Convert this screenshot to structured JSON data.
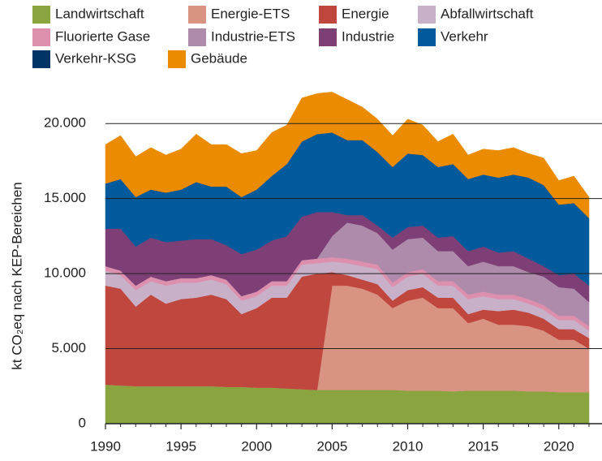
{
  "chart_data": {
    "type": "stacked_area",
    "y_label": "kt CO₂eq nach KEP-Bereichen",
    "x": [
      1990,
      1991,
      1992,
      1993,
      1994,
      1995,
      1996,
      1997,
      1998,
      1999,
      2000,
      2001,
      2002,
      2003,
      2004,
      2005,
      2006,
      2007,
      2008,
      2009,
      2010,
      2011,
      2012,
      2013,
      2014,
      2015,
      2016,
      2017,
      2018,
      2019,
      2020,
      2021,
      2022
    ],
    "xlim": [
      1990,
      2022
    ],
    "xticks": [
      1990,
      1995,
      2000,
      2005,
      2010,
      2015,
      2020
    ],
    "ylim": [
      0,
      22500
    ],
    "yticks": [
      0,
      {
        "value": 5000,
        "label": "5.000"
      },
      {
        "value": 10000,
        "label": "10.000"
      },
      {
        "value": 15000,
        "label": "15.000"
      },
      {
        "value": 20000,
        "label": "20.000"
      }
    ],
    "grid": true,
    "legend": "top",
    "series": [
      {
        "name": "Landwirtschaft",
        "color": "#8aa53f",
        "values": [
          2600,
          2550,
          2500,
          2500,
          2500,
          2500,
          2500,
          2500,
          2450,
          2450,
          2400,
          2400,
          2350,
          2300,
          2250,
          2250,
          2250,
          2250,
          2250,
          2250,
          2200,
          2200,
          2200,
          2150,
          2200,
          2200,
          2200,
          2200,
          2150,
          2150,
          2100,
          2100,
          2100
        ]
      },
      {
        "name": "Energie-ETS",
        "color": "#d99383",
        "values": [
          0,
          0,
          0,
          0,
          0,
          0,
          0,
          0,
          0,
          0,
          0,
          0,
          0,
          0,
          0,
          6950,
          6950,
          6750,
          6350,
          5450,
          6000,
          6200,
          5500,
          5550,
          4500,
          4800,
          4400,
          4400,
          4350,
          4050,
          3500,
          3500,
          2900
        ]
      },
      {
        "name": "Energie",
        "color": "#c0473e",
        "values": [
          6600,
          6450,
          5300,
          6100,
          5500,
          5800,
          5900,
          6100,
          5850,
          4850,
          5300,
          6000,
          6050,
          7500,
          7750,
          900,
          700,
          600,
          700,
          500,
          700,
          700,
          700,
          700,
          600,
          600,
          900,
          1000,
          900,
          800,
          700,
          700,
          700
        ]
      },
      {
        "name": "Abfallwirtschaft",
        "color": "#c9b0c9",
        "values": [
          1000,
          900,
          1100,
          900,
          1200,
          1100,
          1000,
          1000,
          1000,
          900,
          800,
          800,
          800,
          800,
          700,
          700,
          800,
          900,
          1000,
          900,
          900,
          900,
          800,
          800,
          1000,
          900,
          800,
          700,
          600,
          600,
          600,
          600,
          500
        ]
      },
      {
        "name": "Fluorierte Gase",
        "color": "#dd8fae",
        "values": [
          300,
          300,
          300,
          300,
          300,
          300,
          300,
          300,
          300,
          300,
          300,
          300,
          300,
          300,
          300,
          300,
          300,
          300,
          300,
          300,
          300,
          300,
          300,
          300,
          300,
          300,
          300,
          300,
          300,
          300,
          300,
          300,
          300
        ]
      },
      {
        "name": "Industrie-ETS",
        "color": "#ae8aab",
        "values": [
          0,
          0,
          0,
          0,
          0,
          0,
          0,
          0,
          0,
          0,
          0,
          0,
          0,
          0,
          0,
          1400,
          2400,
          2400,
          2100,
          2200,
          2200,
          2100,
          2000,
          2000,
          1900,
          2000,
          1900,
          1900,
          1800,
          1900,
          1900,
          1800,
          1600
        ]
      },
      {
        "name": "Industrie",
        "color": "#7e3f77",
        "values": [
          2500,
          2800,
          2600,
          2600,
          2600,
          2500,
          2600,
          2400,
          2300,
          2800,
          2800,
          2700,
          3000,
          2900,
          3100,
          1600,
          500,
          700,
          500,
          800,
          800,
          800,
          900,
          1000,
          1000,
          1000,
          900,
          1000,
          900,
          700,
          800,
          1000,
          1100
        ]
      },
      {
        "name": "Verkehr",
        "color": "#005a9b",
        "values": [
          3000,
          3300,
          3300,
          3200,
          3300,
          3400,
          3800,
          3500,
          3900,
          3800,
          4000,
          4300,
          4800,
          5000,
          5200,
          5300,
          5000,
          5000,
          4900,
          4700,
          4900,
          4700,
          4700,
          4800,
          4800,
          4800,
          5000,
          5100,
          5400,
          5400,
          4700,
          4700,
          4500
        ]
      },
      {
        "name": "Verkehr-KSG",
        "color": "#003366",
        "values": [
          0,
          0,
          0,
          0,
          0,
          0,
          0,
          0,
          0,
          0,
          0,
          0,
          0,
          0,
          0,
          0,
          0,
          0,
          0,
          0,
          0,
          0,
          0,
          0,
          0,
          0,
          0,
          0,
          0,
          0,
          0,
          0,
          0
        ]
      },
      {
        "name": "Gebäude",
        "color": "#eb8c00",
        "values": [
          2600,
          2900,
          2700,
          2800,
          2500,
          2700,
          3200,
          2800,
          2800,
          2900,
          2600,
          2900,
          2600,
          2900,
          2700,
          2700,
          2700,
          2200,
          2200,
          2100,
          2300,
          2000,
          1700,
          2000,
          1600,
          1700,
          1800,
          1800,
          1600,
          1800,
          1600,
          1800,
          1400
        ]
      }
    ]
  }
}
